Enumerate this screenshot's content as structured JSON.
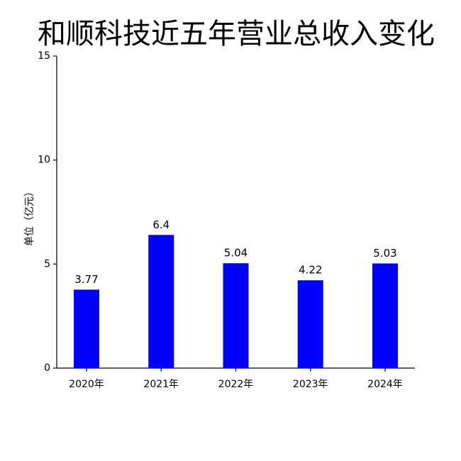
{
  "chart_data": {
    "type": "bar",
    "title": "和顺科技近五年营业总收入变化",
    "y_label": "单位（亿元）",
    "categories": [
      "2020年",
      "2021年",
      "2022年",
      "2023年",
      "2024年"
    ],
    "values": [
      3.77,
      6.4,
      5.04,
      4.22,
      5.03
    ],
    "color": "#0000ff",
    "ylim": [
      0,
      15
    ],
    "yticks": [
      0,
      5,
      10,
      15
    ],
    "grid": false
  }
}
